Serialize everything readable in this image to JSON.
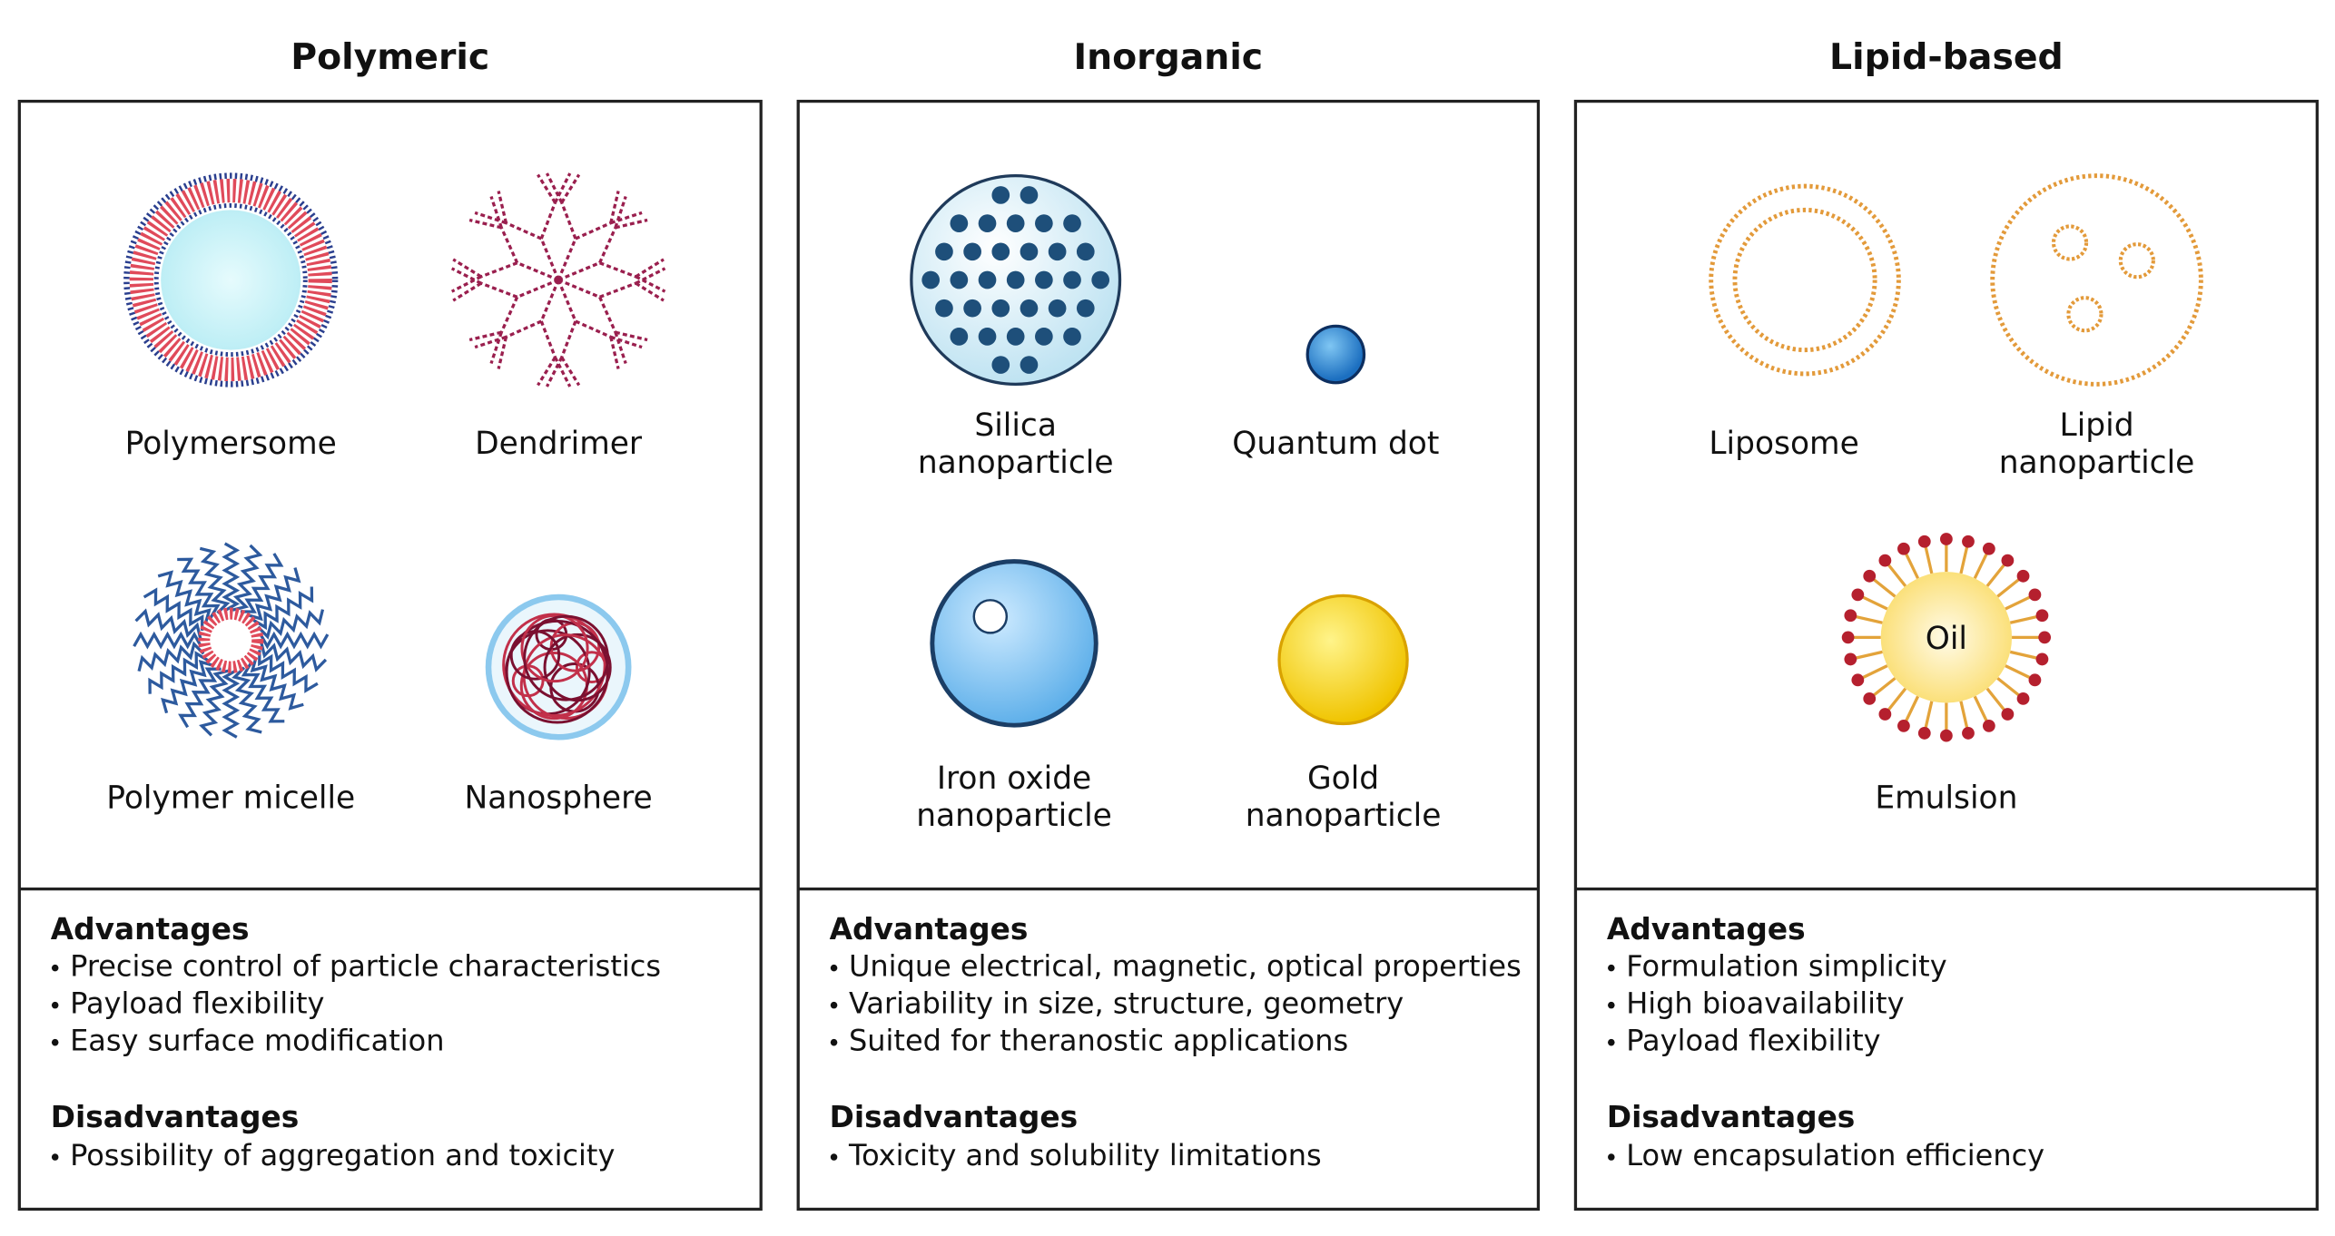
{
  "columns": [
    {
      "title": "Polymeric",
      "particles": [
        {
          "label": "Polymersome"
        },
        {
          "label": "Dendrimer"
        },
        {
          "label": "Polymer micelle"
        },
        {
          "label": "Nanosphere"
        }
      ],
      "advantages_heading": "Advantages",
      "advantages": [
        "Precise control of particle characteristics",
        "Payload flexibility",
        "Easy surface modification"
      ],
      "disadvantages_heading": "Disadvantages",
      "disadvantages": [
        "Possibility of aggregation and toxicity"
      ]
    },
    {
      "title": "Inorganic",
      "particles": [
        {
          "label": "Silica\nnanoparticle"
        },
        {
          "label": "Quantum dot"
        },
        {
          "label": "Iron oxide\nnanoparticle"
        },
        {
          "label": "Gold\nnanoparticle"
        }
      ],
      "advantages_heading": "Advantages",
      "advantages": [
        "Unique electrical, magnetic, optical properties",
        "Variability in size, structure, geometry",
        "Suited for theranostic applications"
      ],
      "disadvantages_heading": "Disadvantages",
      "disadvantages": [
        "Toxicity and solubility limitations"
      ]
    },
    {
      "title": "Lipid-based",
      "particles": [
        {
          "label": "Liposome"
        },
        {
          "label": "Lipid\nnanoparticle"
        },
        {
          "label": "Emulsion",
          "inner_label": "Oil"
        }
      ],
      "advantages_heading": "Advantages",
      "advantages": [
        "Formulation simplicity",
        "High bioavailability",
        "Payload flexibility"
      ],
      "disadvantages_heading": "Disadvantages",
      "disadvantages": [
        "Low encapsulation efficiency"
      ]
    }
  ]
}
